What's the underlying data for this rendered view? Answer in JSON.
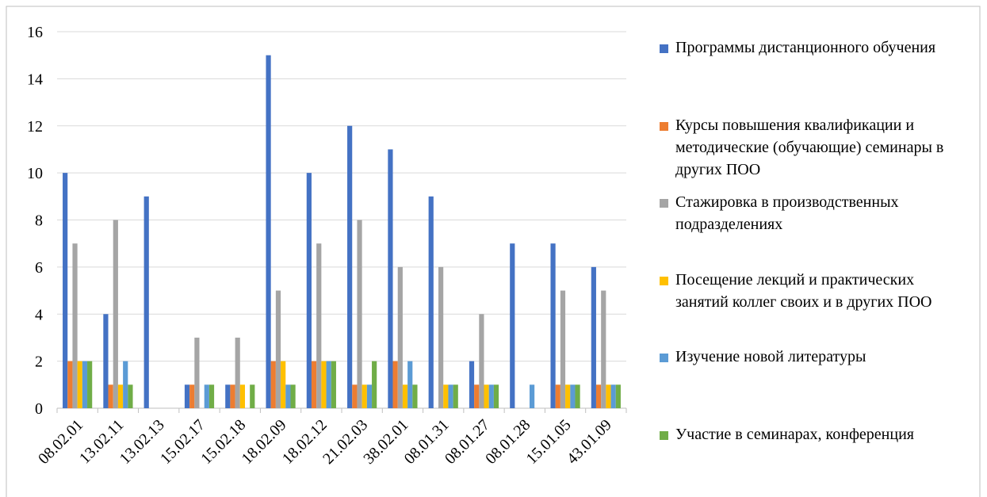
{
  "chart_data": {
    "type": "bar",
    "categories": [
      "08.02.01",
      "13.02.11",
      "13.02.13",
      "15.02.17",
      "15.02.18",
      "18.02.09",
      "18.02.12",
      "21.02.03",
      "38.02.01",
      "08.01.31",
      "08.01.27",
      "08.01.28",
      "15.01.05",
      "43.01.09"
    ],
    "series": [
      {
        "name": "Программы дистанционного обучения",
        "color": "#4472c4",
        "values": [
          10,
          4,
          9,
          1,
          1,
          15,
          10,
          12,
          11,
          9,
          2,
          7,
          7,
          6
        ]
      },
      {
        "name": "Курсы повышения квалификации и методические (обучающие) семинары в других ПОО",
        "color": "#ed7d31",
        "values": [
          2,
          1,
          0,
          1,
          1,
          2,
          2,
          1,
          2,
          0,
          1,
          0,
          1,
          1
        ]
      },
      {
        "name": "Стажировка в производственных подразделениях",
        "color": "#a5a5a5",
        "values": [
          7,
          8,
          0,
          3,
          3,
          5,
          7,
          8,
          6,
          6,
          4,
          0,
          5,
          5
        ]
      },
      {
        "name": "Посещение лекций и практических занятий коллег своих и в других ПОО",
        "color": "#ffc000",
        "values": [
          2,
          1,
          0,
          0,
          1,
          2,
          2,
          1,
          1,
          1,
          1,
          0,
          1,
          1
        ]
      },
      {
        "name": "Изучение новой литературы",
        "color": "#5b9bd5",
        "values": [
          2,
          2,
          0,
          1,
          0,
          1,
          2,
          1,
          2,
          1,
          1,
          1,
          1,
          1
        ]
      },
      {
        "name": "Участие в семинарах, конференция",
        "color": "#70ad47",
        "values": [
          2,
          1,
          0,
          1,
          1,
          1,
          2,
          2,
          1,
          1,
          1,
          0,
          1,
          1
        ]
      }
    ],
    "ylim": [
      0,
      16
    ],
    "yticks": [
      0,
      2,
      4,
      6,
      8,
      10,
      12,
      14,
      16
    ],
    "grid": true,
    "legend": "right"
  }
}
